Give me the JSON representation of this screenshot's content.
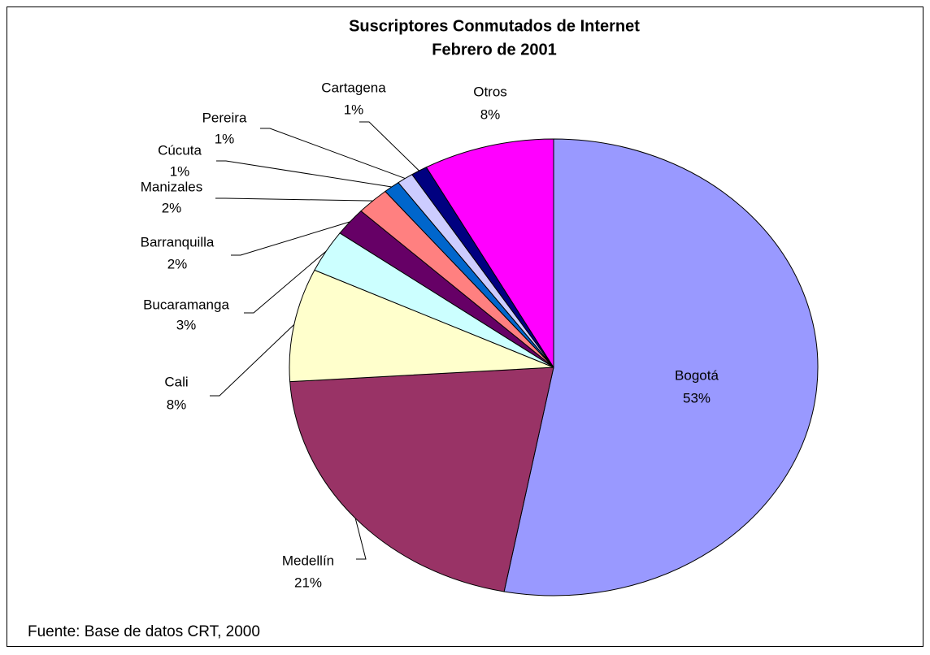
{
  "chart_data": {
    "type": "pie",
    "title": "Suscriptores Conmutados de Internet",
    "subtitle": "Febrero de 2001",
    "source": "Fuente: Base de datos CRT, 2000",
    "categories": [
      "Bogotá",
      "Medellín",
      "Cali",
      "Bucaramanga",
      "Barranquilla",
      "Manizales",
      "Cúcuta",
      "Pereira",
      "Cartagena",
      "Otros"
    ],
    "values": [
      53,
      21,
      8,
      3,
      2,
      2,
      1,
      1,
      1,
      8
    ],
    "value_labels": [
      "53%",
      "21%",
      "8%",
      "3%",
      "2%",
      "2%",
      "1%",
      "1%",
      "1%",
      "8%"
    ],
    "colors": [
      "#9999ff",
      "#993366",
      "#ffffcc",
      "#ccffff",
      "#660066",
      "#ff8080",
      "#0066cc",
      "#ccccff",
      "#000080",
      "#ff00ff"
    ]
  }
}
